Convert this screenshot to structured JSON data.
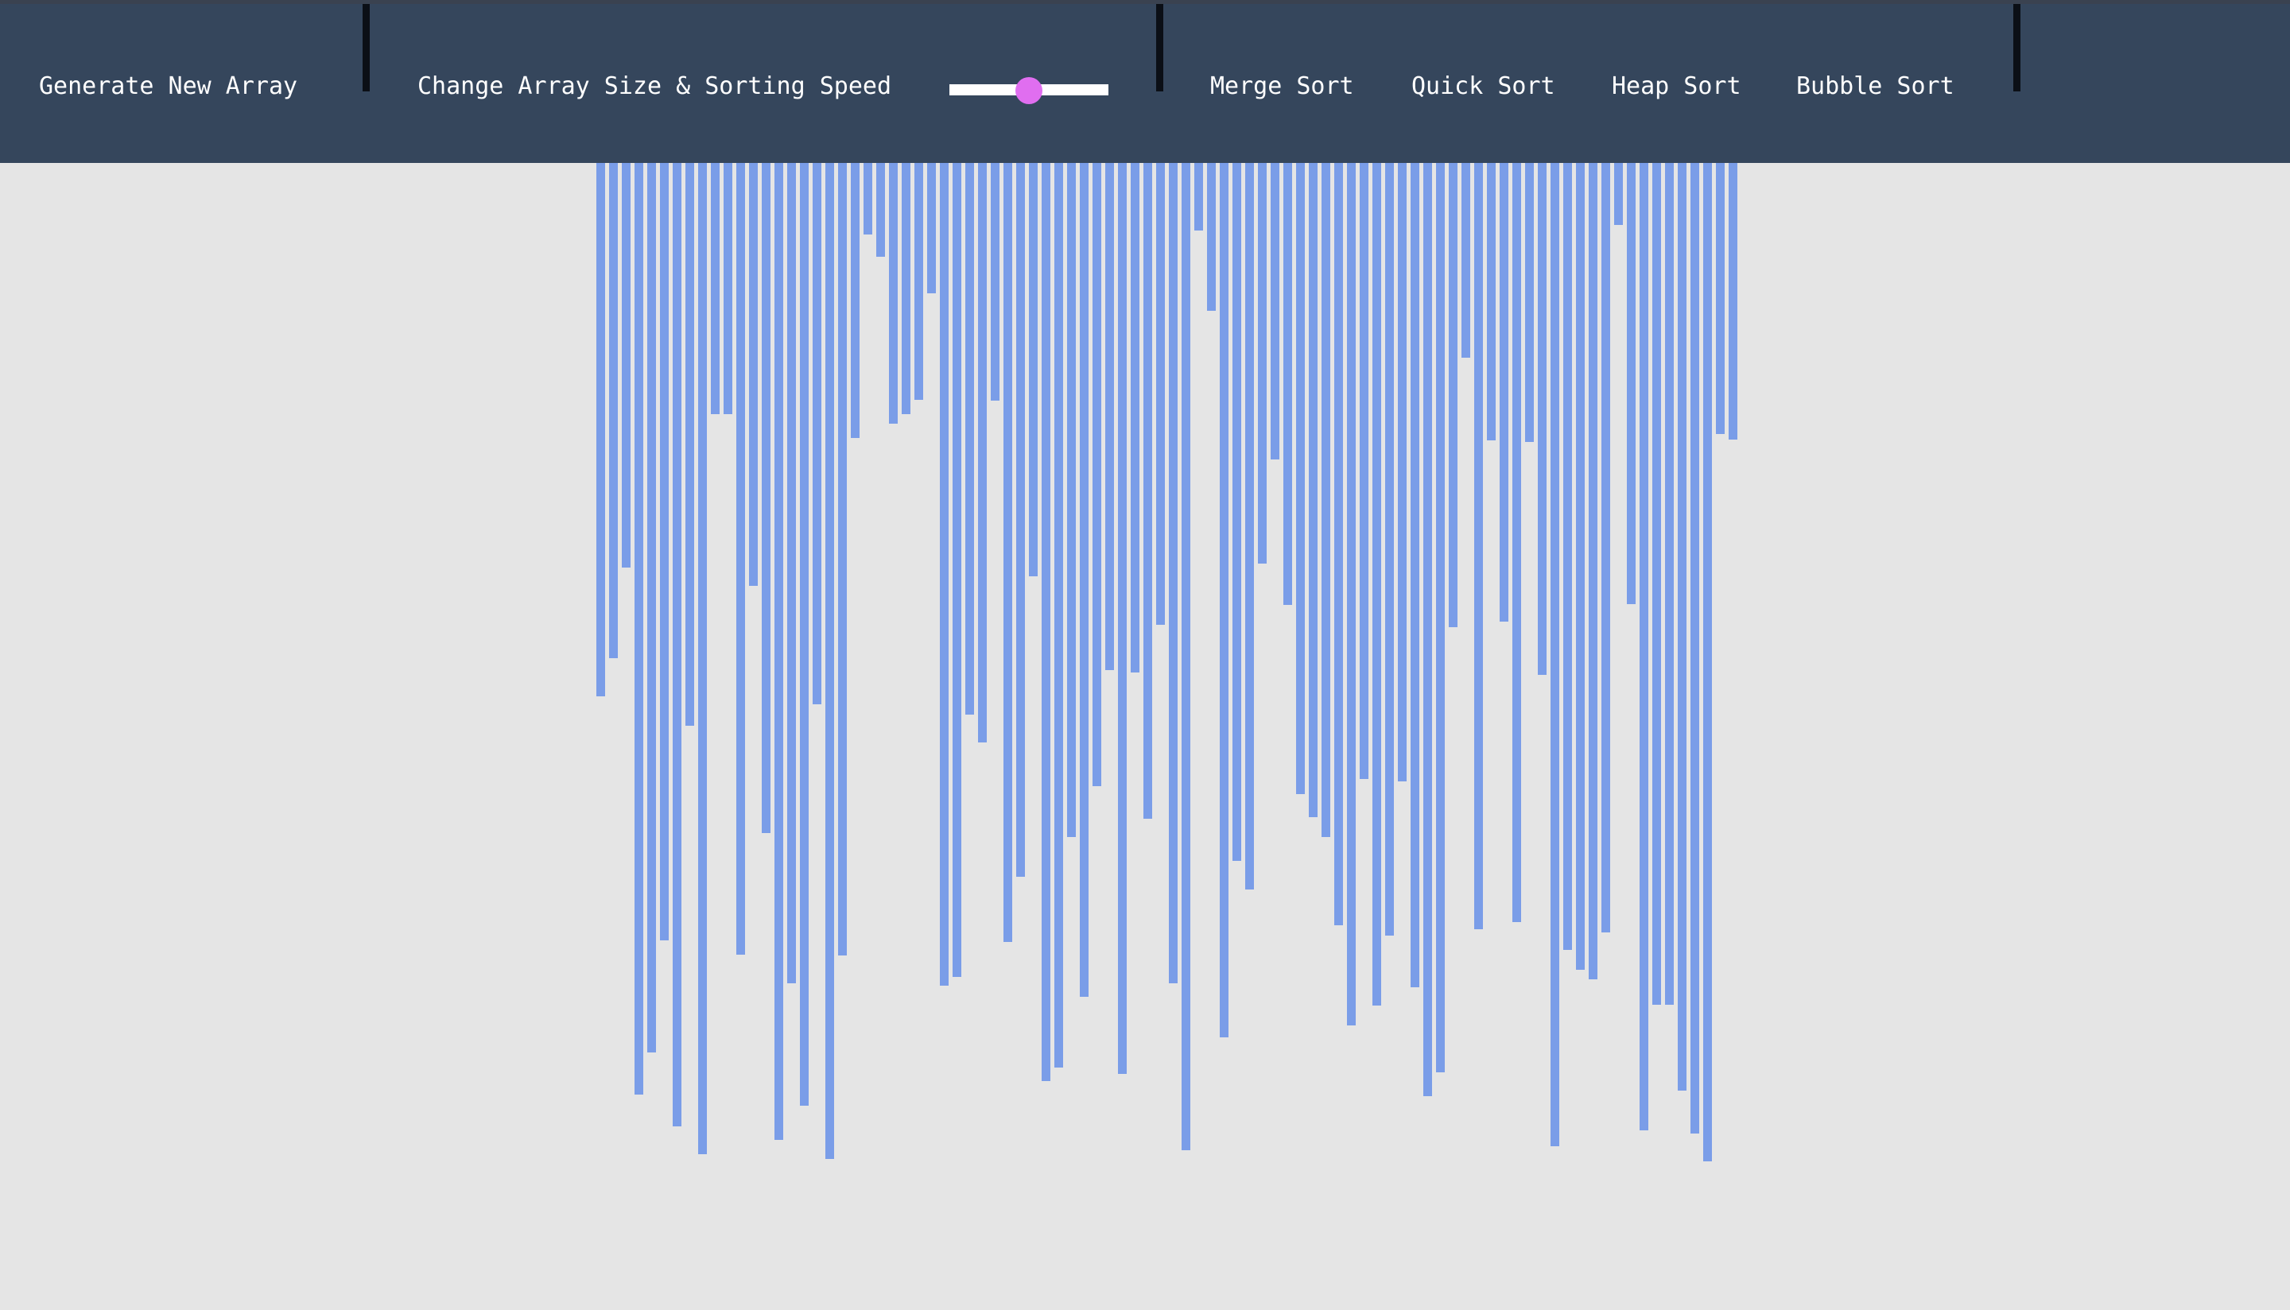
{
  "navbar": {
    "generate_label": "Generate New Array",
    "size_speed_label": "Change Array Size & Sorting Speed",
    "slider_value_fraction": 0.5,
    "algorithms": [
      {
        "label": "Merge Sort"
      },
      {
        "label": "Quick Sort"
      },
      {
        "label": "Heap Sort"
      },
      {
        "label": "Bubble Sort"
      }
    ]
  },
  "colors": {
    "navbar_bg": "#35465c",
    "page_bg": "#e5e5e5",
    "bar": "#7a9de8",
    "slider_thumb": "#e06ef0",
    "divider": "#0b0f16"
  },
  "array": {
    "max_value": 1260,
    "values": [
      670,
      622,
      508,
      1170,
      1117,
      976,
      1210,
      707,
      1245,
      315,
      315,
      994,
      531,
      842,
      1227,
      1030,
      1184,
      680,
      1251,
      995,
      345,
      90,
      118,
      327,
      315,
      298,
      164,
      1033,
      1022,
      693,
      728,
      299,
      978,
      897,
      519,
      1153,
      1136,
      847,
      1047,
      783,
      637,
      1144,
      640,
      824,
      580,
      1030,
      1240,
      85,
      186,
      1098,
      877,
      913,
      503,
      372,
      555,
      793,
      822,
      847,
      957,
      1083,
      774,
      1058,
      970,
      777,
      1035,
      1172,
      1142,
      583,
      245,
      962,
      348,
      576,
      953,
      350,
      643,
      1235,
      988,
      1013,
      1025,
      966,
      78,
      554,
      1215,
      1057,
      1057,
      1165,
      1219,
      1254,
      340,
      347
    ]
  }
}
